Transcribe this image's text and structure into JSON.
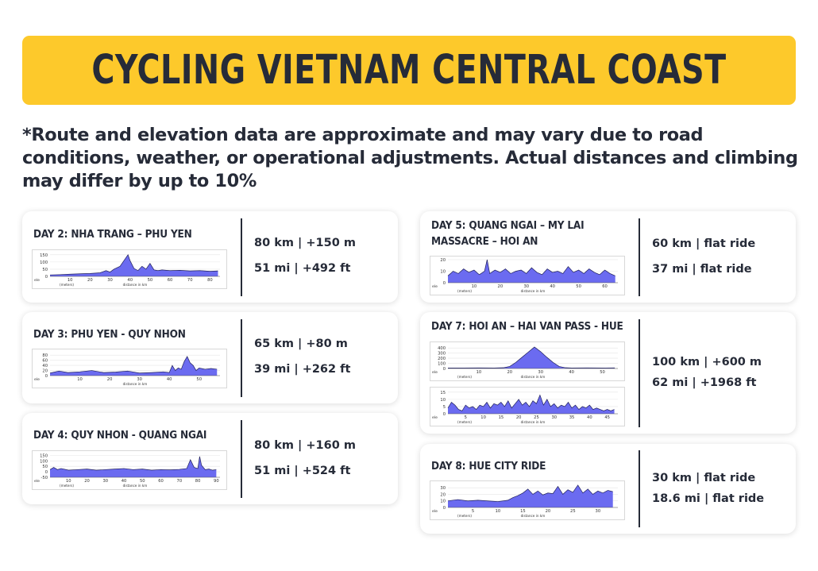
{
  "title": "CYCLING VIETNAM CENTRAL COAST",
  "disclaimer": "*Route and elevation data are approximate and may vary due to road conditions, weather, or operational adjustments. Actual distances and climbing may differ by up to 10%",
  "days": [
    {
      "title": "DAY 2: NHA TRANG – PHU YEN",
      "metric": "80 km | +150 m",
      "imperial": "51 mi | +492 ft"
    },
    {
      "title": "DAY 3: PHU YEN - QUY NHON",
      "metric": "65 km | +80 m",
      "imperial": "39 mi | +262 ft"
    },
    {
      "title": "DAY 4: QUY NHON - QUANG NGAI",
      "metric": "80 km | +160 m",
      "imperial": "51 mi | +524 ft"
    },
    {
      "title_line1": "DAY 5: QUANG NGAI – MY LAI",
      "title_line2": "MASSACRE – HOI AN",
      "metric": "60 km | flat ride",
      "imperial": "37 mi | flat ride"
    },
    {
      "title": "DAY 7: HOI AN – HAI VAN PASS - HUE",
      "metric": "100 km | +600 m",
      "imperial": "62 mi | +1968 ft"
    },
    {
      "title": "DAY 8: HUE CITY RIDE",
      "metric": "30 km | flat ride",
      "imperial": "18.6 mi | flat ride"
    }
  ],
  "colors": {
    "accent": "#fdc92b",
    "text": "#262b38",
    "fill": "#6b6bf0",
    "line": "#20205a"
  },
  "chart_data": [
    {
      "type": "area",
      "xlabel": "distance in km",
      "ylabel": "(meters)",
      "xlim": [
        0,
        85
      ],
      "ylim": [
        0,
        160
      ],
      "yticks": [
        0,
        50,
        100,
        150
      ],
      "xticks": [
        10,
        20,
        30,
        40,
        50,
        60,
        70,
        80
      ],
      "xtick_first": "ele",
      "x": [
        0,
        5,
        10,
        15,
        20,
        25,
        28,
        30,
        32,
        35,
        37,
        39,
        40,
        42,
        44,
        46,
        48,
        50,
        52,
        54,
        56,
        60,
        65,
        70,
        75,
        80,
        84
      ],
      "y": [
        10,
        12,
        15,
        18,
        20,
        25,
        40,
        30,
        50,
        70,
        110,
        150,
        110,
        55,
        40,
        70,
        50,
        90,
        45,
        40,
        45,
        40,
        42,
        38,
        40,
        35,
        38
      ]
    },
    {
      "type": "area",
      "xlabel": "distance in km",
      "ylabel": "",
      "xlim": [
        0,
        57
      ],
      "ylim": [
        0,
        90
      ],
      "yticks": [
        0,
        20,
        40,
        60,
        80
      ],
      "xticks": [
        10,
        20,
        30,
        40,
        50
      ],
      "xtick_first": "ele",
      "x": [
        0,
        3,
        6,
        10,
        14,
        18,
        22,
        26,
        30,
        34,
        38,
        40,
        41,
        42,
        43,
        44,
        45,
        46,
        47,
        48,
        49,
        50,
        52,
        54,
        56
      ],
      "y": [
        10,
        18,
        12,
        15,
        20,
        12,
        14,
        18,
        10,
        12,
        15,
        12,
        40,
        20,
        30,
        25,
        55,
        75,
        50,
        40,
        20,
        30,
        25,
        28,
        25
      ]
    },
    {
      "type": "area",
      "xlabel": "distance in km",
      "ylabel": "(meters)",
      "xlim": [
        0,
        92
      ],
      "ylim": [
        -50,
        160
      ],
      "yticks": [
        -50,
        0,
        50,
        100,
        150
      ],
      "xticks": [
        10,
        20,
        30,
        40,
        50,
        60,
        70,
        80,
        90
      ],
      "xtick_first": "ele",
      "x": [
        0,
        2,
        4,
        6,
        10,
        15,
        20,
        25,
        30,
        35,
        40,
        45,
        50,
        55,
        60,
        65,
        70,
        74,
        76,
        78,
        80,
        81,
        82,
        84,
        86,
        88,
        90
      ],
      "y": [
        20,
        40,
        20,
        30,
        15,
        20,
        25,
        15,
        20,
        25,
        30,
        20,
        25,
        15,
        20,
        18,
        22,
        30,
        110,
        40,
        30,
        140,
        60,
        20,
        25,
        15,
        20
      ]
    },
    {
      "type": "area",
      "xlabel": "distance in km",
      "ylabel": "(meters)",
      "xlim": [
        0,
        65
      ],
      "ylim": [
        0,
        20
      ],
      "yticks": [
        0,
        10,
        20
      ],
      "xticks": [
        10,
        20,
        30,
        40,
        50,
        60
      ],
      "xtick_first": "ele",
      "x": [
        0,
        2,
        4,
        6,
        8,
        10,
        12,
        14,
        15,
        16,
        18,
        20,
        22,
        24,
        26,
        28,
        30,
        32,
        34,
        36,
        38,
        40,
        42,
        44,
        46,
        48,
        50,
        52,
        54,
        56,
        58,
        60,
        62,
        64
      ],
      "y": [
        6,
        10,
        8,
        12,
        9,
        11,
        7,
        10,
        20,
        8,
        11,
        9,
        12,
        8,
        10,
        11,
        8,
        13,
        9,
        7,
        12,
        9,
        10,
        8,
        14,
        9,
        11,
        8,
        12,
        9,
        7,
        11,
        8,
        6
      ]
    },
    {
      "type": "area",
      "xlabel": "distance in km",
      "ylabel": "(meters)",
      "xlim": [
        0,
        55
      ],
      "ylim": [
        0,
        450
      ],
      "yticks": [
        0,
        100,
        200,
        300,
        400
      ],
      "xticks": [
        10,
        20,
        30,
        40,
        50
      ],
      "xtick_first": "ele",
      "x": [
        0,
        5,
        10,
        15,
        18,
        20,
        22,
        24,
        26,
        28,
        30,
        32,
        34,
        36,
        38,
        40,
        45,
        50,
        54
      ],
      "y": [
        10,
        10,
        12,
        10,
        15,
        40,
        120,
        220,
        320,
        420,
        330,
        220,
        120,
        40,
        15,
        10,
        12,
        10,
        12
      ]
    },
    {
      "type": "area",
      "xlabel": "distance in km",
      "ylabel": "(meters)",
      "xlim": [
        0,
        48
      ],
      "ylim": [
        0,
        16
      ],
      "yticks": [
        0,
        5,
        10,
        15
      ],
      "xticks": [
        5,
        10,
        15,
        20,
        25,
        30,
        35,
        40,
        45
      ],
      "xtick_first": "ele",
      "x": [
        0,
        1,
        2,
        3,
        4,
        5,
        6,
        7,
        8,
        9,
        10,
        11,
        12,
        13,
        14,
        15,
        16,
        17,
        18,
        19,
        20,
        21,
        22,
        23,
        24,
        25,
        26,
        27,
        28,
        29,
        30,
        31,
        32,
        33,
        34,
        35,
        36,
        37,
        38,
        39,
        40,
        41,
        42,
        43,
        44,
        45,
        46,
        47
      ],
      "y": [
        4,
        8,
        6,
        3,
        2,
        6,
        4,
        5,
        3,
        6,
        5,
        8,
        4,
        7,
        6,
        8,
        5,
        9,
        4,
        7,
        10,
        6,
        8,
        5,
        9,
        7,
        13,
        6,
        10,
        5,
        7,
        4,
        6,
        5,
        8,
        4,
        6,
        3,
        5,
        4,
        6,
        3,
        4,
        3,
        2,
        3,
        2,
        3
      ]
    },
    {
      "type": "area",
      "xlabel": "distance in km",
      "ylabel": "(meters)",
      "xlim": [
        0,
        34
      ],
      "ylim": [
        0,
        35
      ],
      "yticks": [
        0,
        10,
        20,
        30
      ],
      "xticks": [
        5,
        10,
        15,
        20,
        25,
        30
      ],
      "xtick_first": "ele",
      "x": [
        0,
        2,
        4,
        6,
        8,
        10,
        12,
        13,
        14,
        15,
        16,
        17,
        18,
        19,
        20,
        21,
        22,
        23,
        24,
        25,
        26,
        27,
        28,
        29,
        30,
        31,
        32,
        33
      ],
      "y": [
        10,
        12,
        10,
        11,
        10,
        9,
        11,
        15,
        18,
        22,
        28,
        20,
        25,
        19,
        22,
        21,
        32,
        20,
        27,
        23,
        34,
        22,
        28,
        20,
        25,
        22,
        26,
        24
      ]
    }
  ]
}
